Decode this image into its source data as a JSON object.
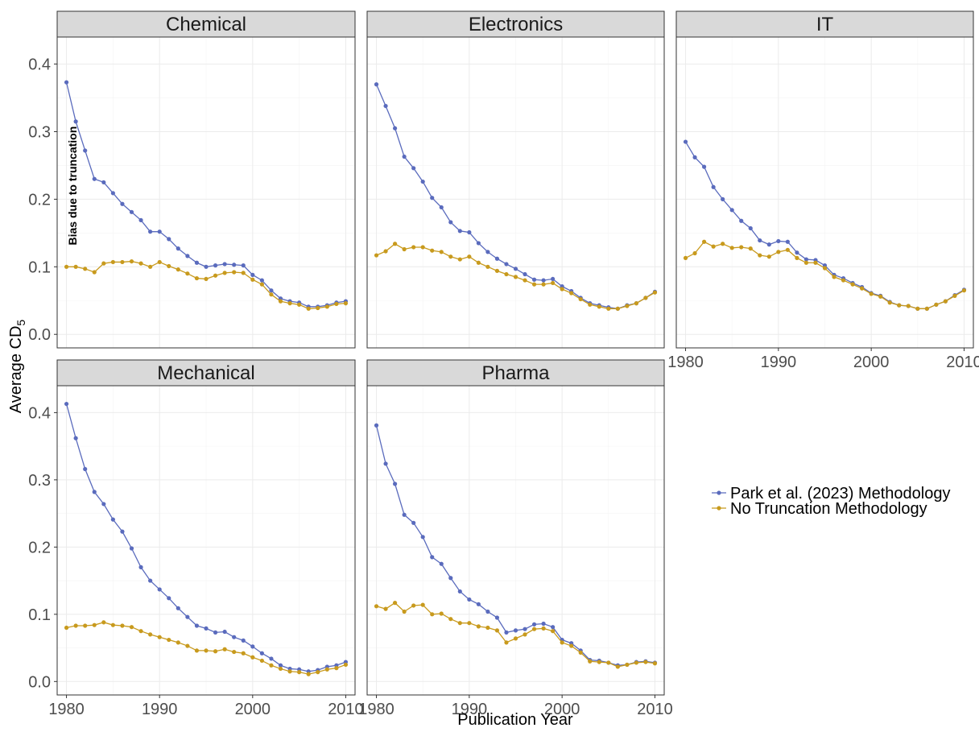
{
  "chart_data": {
    "type": "line",
    "xlabel": "Publication Year",
    "ylabel": "Average CD",
    "ylabel_subscript": "5",
    "ylim": [
      -0.02,
      0.44
    ],
    "yticks": [
      0.0,
      0.1,
      0.2,
      0.3,
      0.4
    ],
    "ytick_labels": [
      "0.0",
      "0.1",
      "0.2",
      "0.3",
      "0.4"
    ],
    "xlim": [
      1979,
      2011
    ],
    "xticks": [
      1980,
      1990,
      2000,
      2010
    ],
    "xtick_labels": [
      "1980",
      "1990",
      "2000",
      "2010"
    ],
    "grid": true,
    "legend_position": "right",
    "legend": [
      {
        "name": "Park et al. (2023) Methodology",
        "color": "#5a6bbd"
      },
      {
        "name": "No Truncation Methodology",
        "color": "#c89a1d"
      }
    ],
    "annotation": {
      "text": "Bias due to truncation",
      "panel": "Chemical"
    },
    "years": [
      1980,
      1981,
      1982,
      1983,
      1984,
      1985,
      1986,
      1987,
      1988,
      1989,
      1990,
      1991,
      1992,
      1993,
      1994,
      1995,
      1996,
      1997,
      1998,
      1999,
      2000,
      2001,
      2002,
      2003,
      2004,
      2005,
      2006,
      2007,
      2008,
      2009,
      2010
    ],
    "panels": [
      {
        "title": "Chemical",
        "series": [
          {
            "name": "Park et al. (2023) Methodology",
            "values": [
              0.373,
              0.315,
              0.272,
              0.23,
              0.225,
              0.209,
              0.193,
              0.181,
              0.169,
              0.152,
              0.152,
              0.141,
              0.127,
              0.116,
              0.106,
              0.1,
              0.102,
              0.104,
              0.103,
              0.102,
              0.088,
              0.08,
              0.065,
              0.053,
              0.049,
              0.047,
              0.041,
              0.041,
              0.043,
              0.047,
              0.049
            ]
          },
          {
            "name": "No Truncation Methodology",
            "values": [
              0.1,
              0.1,
              0.097,
              0.092,
              0.105,
              0.107,
              0.107,
              0.108,
              0.105,
              0.1,
              0.107,
              0.101,
              0.096,
              0.09,
              0.083,
              0.082,
              0.087,
              0.091,
              0.092,
              0.091,
              0.081,
              0.074,
              0.059,
              0.049,
              0.046,
              0.044,
              0.038,
              0.039,
              0.041,
              0.045,
              0.046
            ]
          }
        ]
      },
      {
        "title": "Electronics",
        "series": [
          {
            "name": "Park et al. (2023) Methodology",
            "values": [
              0.37,
              0.338,
              0.305,
              0.263,
              0.246,
              0.226,
              0.202,
              0.188,
              0.166,
              0.153,
              0.151,
              0.135,
              0.122,
              0.112,
              0.104,
              0.097,
              0.089,
              0.081,
              0.08,
              0.082,
              0.071,
              0.064,
              0.054,
              0.046,
              0.043,
              0.04,
              0.038,
              0.043,
              0.046,
              0.054,
              0.063
            ]
          },
          {
            "name": "No Truncation Methodology",
            "values": [
              0.117,
              0.123,
              0.134,
              0.126,
              0.129,
              0.129,
              0.124,
              0.122,
              0.115,
              0.111,
              0.115,
              0.106,
              0.1,
              0.094,
              0.089,
              0.085,
              0.08,
              0.074,
              0.074,
              0.076,
              0.067,
              0.061,
              0.052,
              0.044,
              0.041,
              0.038,
              0.038,
              0.042,
              0.046,
              0.054,
              0.062
            ]
          }
        ]
      },
      {
        "title": "IT",
        "series": [
          {
            "name": "Park et al. (2023) Methodology",
            "values": [
              0.285,
              0.262,
              0.248,
              0.218,
              0.2,
              0.184,
              0.168,
              0.157,
              0.139,
              0.133,
              0.138,
              0.137,
              0.121,
              0.111,
              0.11,
              0.102,
              0.088,
              0.083,
              0.076,
              0.07,
              0.061,
              0.057,
              0.048,
              0.043,
              0.042,
              0.038,
              0.038,
              0.044,
              0.049,
              0.058,
              0.066
            ]
          },
          {
            "name": "No Truncation Methodology",
            "values": [
              0.113,
              0.12,
              0.137,
              0.13,
              0.134,
              0.128,
              0.129,
              0.127,
              0.117,
              0.115,
              0.122,
              0.125,
              0.113,
              0.106,
              0.106,
              0.098,
              0.085,
              0.08,
              0.074,
              0.068,
              0.06,
              0.056,
              0.047,
              0.043,
              0.042,
              0.038,
              0.038,
              0.044,
              0.049,
              0.057,
              0.065
            ]
          }
        ]
      },
      {
        "title": "Mechanical",
        "series": [
          {
            "name": "Park et al. (2023) Methodology",
            "values": [
              0.413,
              0.362,
              0.316,
              0.282,
              0.264,
              0.241,
              0.223,
              0.198,
              0.17,
              0.15,
              0.137,
              0.124,
              0.109,
              0.096,
              0.083,
              0.079,
              0.073,
              0.074,
              0.066,
              0.061,
              0.052,
              0.042,
              0.034,
              0.024,
              0.019,
              0.018,
              0.015,
              0.017,
              0.022,
              0.024,
              0.029
            ]
          },
          {
            "name": "No Truncation Methodology",
            "values": [
              0.08,
              0.083,
              0.083,
              0.084,
              0.088,
              0.084,
              0.083,
              0.081,
              0.075,
              0.07,
              0.066,
              0.062,
              0.058,
              0.053,
              0.046,
              0.046,
              0.045,
              0.048,
              0.044,
              0.042,
              0.036,
              0.031,
              0.024,
              0.019,
              0.015,
              0.014,
              0.011,
              0.014,
              0.018,
              0.02,
              0.025
            ]
          }
        ]
      },
      {
        "title": "Pharma",
        "series": [
          {
            "name": "Park et al. (2023) Methodology",
            "values": [
              0.381,
              0.324,
              0.294,
              0.248,
              0.236,
              0.215,
              0.185,
              0.175,
              0.154,
              0.134,
              0.122,
              0.115,
              0.104,
              0.095,
              0.073,
              0.076,
              0.078,
              0.085,
              0.086,
              0.081,
              0.062,
              0.057,
              0.046,
              0.032,
              0.031,
              0.028,
              0.024,
              0.025,
              0.029,
              0.03,
              0.028
            ]
          },
          {
            "name": "No Truncation Methodology",
            "values": [
              0.112,
              0.108,
              0.117,
              0.104,
              0.113,
              0.114,
              0.1,
              0.101,
              0.093,
              0.087,
              0.087,
              0.082,
              0.08,
              0.076,
              0.058,
              0.064,
              0.07,
              0.078,
              0.079,
              0.075,
              0.058,
              0.053,
              0.043,
              0.03,
              0.029,
              0.028,
              0.022,
              0.025,
              0.028,
              0.029,
              0.027
            ]
          }
        ]
      }
    ]
  }
}
